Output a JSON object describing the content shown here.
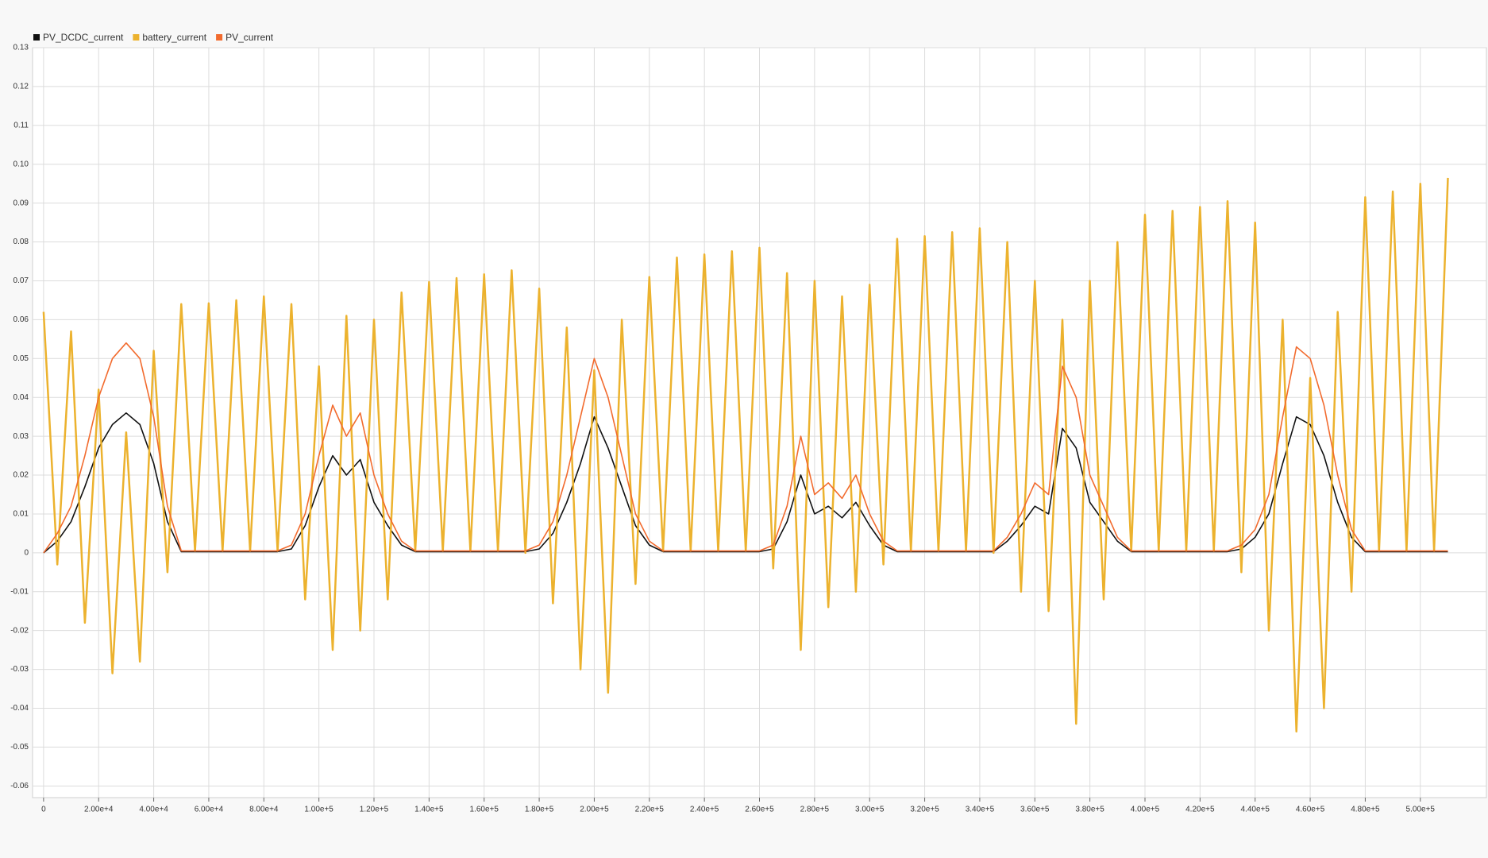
{
  "chart_data": {
    "type": "line",
    "legend": "top-left",
    "grid": true,
    "xlim": [
      -4000,
      524000
    ],
    "ylim": [
      -0.063,
      0.13
    ],
    "yticks": [
      0.13,
      0.12,
      0.11,
      {
        "value": 0.1,
        "label": "0.10"
      },
      0.09,
      0.08,
      0.07,
      0.06,
      0.05,
      0.04,
      0.03,
      0.02,
      0.01,
      0,
      -0.01,
      -0.02,
      -0.03,
      -0.04,
      -0.05,
      -0.06
    ],
    "xticks": [
      0,
      {
        "value": 20000,
        "label": "2.00e+4"
      },
      {
        "value": 40000,
        "label": "4.00e+4"
      },
      {
        "value": 60000,
        "label": "6.00e+4"
      },
      {
        "value": 80000,
        "label": "8.00e+4"
      },
      {
        "value": 100000,
        "label": "1.00e+5"
      },
      {
        "value": 120000,
        "label": "1.20e+5"
      },
      {
        "value": 140000,
        "label": "1.40e+5"
      },
      {
        "value": 160000,
        "label": "1.60e+5"
      },
      {
        "value": 180000,
        "label": "1.80e+5"
      },
      {
        "value": 200000,
        "label": "2.00e+5"
      },
      {
        "value": 220000,
        "label": "2.20e+5"
      },
      {
        "value": 240000,
        "label": "2.40e+5"
      },
      {
        "value": 260000,
        "label": "2.60e+5"
      },
      {
        "value": 280000,
        "label": "2.80e+5"
      },
      {
        "value": 300000,
        "label": "3.00e+5"
      },
      {
        "value": 320000,
        "label": "3.20e+5"
      },
      {
        "value": 340000,
        "label": "3.40e+5"
      },
      {
        "value": 360000,
        "label": "3.60e+5"
      },
      {
        "value": 380000,
        "label": "3.80e+5"
      },
      {
        "value": 400000,
        "label": "4.00e+5"
      },
      {
        "value": 420000,
        "label": "4.20e+5"
      },
      {
        "value": 440000,
        "label": "4.40e+5"
      },
      {
        "value": 460000,
        "label": "4.60e+5"
      },
      {
        "value": 480000,
        "label": "4.80e+5"
      },
      {
        "value": 500000,
        "label": "5.00e+5"
      }
    ],
    "x": [
      0,
      5000,
      10000,
      15000,
      20000,
      25000,
      30000,
      35000,
      40000,
      45000,
      50000,
      55000,
      60000,
      65000,
      70000,
      75000,
      80000,
      85000,
      90000,
      95000,
      100000,
      105000,
      110000,
      115000,
      120000,
      125000,
      130000,
      135000,
      140000,
      145000,
      150000,
      155000,
      160000,
      165000,
      170000,
      175000,
      180000,
      185000,
      190000,
      195000,
      200000,
      205000,
      210000,
      215000,
      220000,
      225000,
      230000,
      235000,
      240000,
      245000,
      250000,
      255000,
      260000,
      265000,
      270000,
      275000,
      280000,
      285000,
      290000,
      295000,
      300000,
      305000,
      310000,
      315000,
      320000,
      325000,
      330000,
      335000,
      340000,
      345000,
      350000,
      355000,
      360000,
      365000,
      370000,
      375000,
      380000,
      385000,
      390000,
      395000,
      400000,
      405000,
      410000,
      415000,
      420000,
      425000,
      430000,
      435000,
      440000,
      445000,
      450000,
      455000,
      460000,
      465000,
      470000,
      475000,
      480000,
      485000,
      490000,
      495000,
      500000,
      505000,
      510000
    ],
    "series": [
      {
        "name": "PV_DCDC_current",
        "color": "#111111",
        "values": [
          0,
          0.003,
          0.008,
          0.017,
          0.027,
          0.033,
          0.036,
          0.033,
          0.023,
          0.008,
          0.0003,
          0.0003,
          0.0003,
          0.0003,
          0.0003,
          0.0003,
          0.0003,
          0.0003,
          0.001,
          0.007,
          0.017,
          0.025,
          0.02,
          0.024,
          0.013,
          0.007,
          0.002,
          0.0003,
          0.0003,
          0.0003,
          0.0003,
          0.0003,
          0.0003,
          0.0003,
          0.0003,
          0.0003,
          0.001,
          0.005,
          0.013,
          0.023,
          0.035,
          0.027,
          0.017,
          0.007,
          0.002,
          0.0003,
          0.0003,
          0.0003,
          0.0003,
          0.0003,
          0.0003,
          0.0003,
          0.0003,
          0.001,
          0.008,
          0.02,
          0.01,
          0.012,
          0.009,
          0.013,
          0.007,
          0.002,
          0.0003,
          0.0003,
          0.0003,
          0.0003,
          0.0003,
          0.0003,
          0.0003,
          0.0003,
          0.003,
          0.007,
          0.012,
          0.01,
          0.032,
          0.027,
          0.013,
          0.008,
          0.003,
          0.0003,
          0.0003,
          0.0003,
          0.0003,
          0.0003,
          0.0003,
          0.0003,
          0.0003,
          0.001,
          0.004,
          0.01,
          0.023,
          0.035,
          0.033,
          0.025,
          0.013,
          0.004,
          0.0003,
          0.0003,
          0.0003,
          0.0003,
          0.0003,
          0.0003,
          0.0003
        ]
      },
      {
        "name": "battery_current",
        "color": "#ecb22e",
        "values": [
          0.062,
          -0.003,
          0.057,
          -0.018,
          0.042,
          -0.031,
          0.031,
          -0.028,
          0.052,
          -0.005,
          0.064,
          0.0005,
          0.0642,
          0.0005,
          0.065,
          0.0005,
          0.066,
          0.0005,
          0.064,
          -0.012,
          0.048,
          -0.025,
          0.061,
          -0.02,
          0.06,
          -0.012,
          0.067,
          0.0005,
          0.0697,
          0.0005,
          0.0707,
          0.0005,
          0.0717,
          0.0005,
          0.0727,
          0,
          0.068,
          -0.013,
          0.058,
          -0.03,
          0.047,
          -0.036,
          0.06,
          -0.008,
          0.071,
          0.0005,
          0.076,
          0.0005,
          0.0768,
          0.0005,
          0.0776,
          0.0005,
          0.0785,
          -0.004,
          0.072,
          -0.025,
          0.07,
          -0.014,
          0.066,
          -0.01,
          0.069,
          -0.003,
          0.0808,
          0.0005,
          0.0815,
          0.0005,
          0.0825,
          0.0005,
          0.0835,
          0,
          0.08,
          -0.01,
          0.07,
          -0.015,
          0.06,
          -0.044,
          0.07,
          -0.012,
          0.08,
          0.0005,
          0.087,
          0.0005,
          0.088,
          0.0005,
          0.089,
          0.0005,
          0.0905,
          -0.005,
          0.085,
          -0.02,
          0.06,
          -0.046,
          0.045,
          -0.04,
          0.062,
          -0.01,
          0.0915,
          0.0005,
          0.093,
          0.0005,
          0.095,
          0.0005,
          0.0965
        ]
      },
      {
        "name": "PV_current",
        "color": "#f26b2e",
        "values": [
          0,
          0.005,
          0.012,
          0.025,
          0.04,
          0.05,
          0.054,
          0.05,
          0.035,
          0.012,
          0.0005,
          0.0005,
          0.0005,
          0.0005,
          0.0005,
          0.0005,
          0.0005,
          0.0005,
          0.002,
          0.01,
          0.025,
          0.038,
          0.03,
          0.036,
          0.02,
          0.01,
          0.003,
          0.0005,
          0.0005,
          0.0005,
          0.0005,
          0.0005,
          0.0005,
          0.0005,
          0.0005,
          0.0005,
          0.002,
          0.008,
          0.02,
          0.035,
          0.05,
          0.04,
          0.025,
          0.01,
          0.003,
          0.0005,
          0.0005,
          0.0005,
          0.0005,
          0.0005,
          0.0005,
          0.0005,
          0.0005,
          0.002,
          0.012,
          0.03,
          0.015,
          0.018,
          0.014,
          0.02,
          0.01,
          0.003,
          0.0005,
          0.0005,
          0.0005,
          0.0005,
          0.0005,
          0.0005,
          0.0005,
          0.0005,
          0.004,
          0.01,
          0.018,
          0.015,
          0.048,
          0.04,
          0.02,
          0.012,
          0.004,
          0.0005,
          0.0005,
          0.0005,
          0.0005,
          0.0005,
          0.0005,
          0.0005,
          0.0005,
          0.002,
          0.006,
          0.015,
          0.035,
          0.053,
          0.05,
          0.038,
          0.02,
          0.006,
          0.0005,
          0.0005,
          0.0005,
          0.0005,
          0.0005,
          0.0005,
          0.0005
        ]
      }
    ]
  }
}
